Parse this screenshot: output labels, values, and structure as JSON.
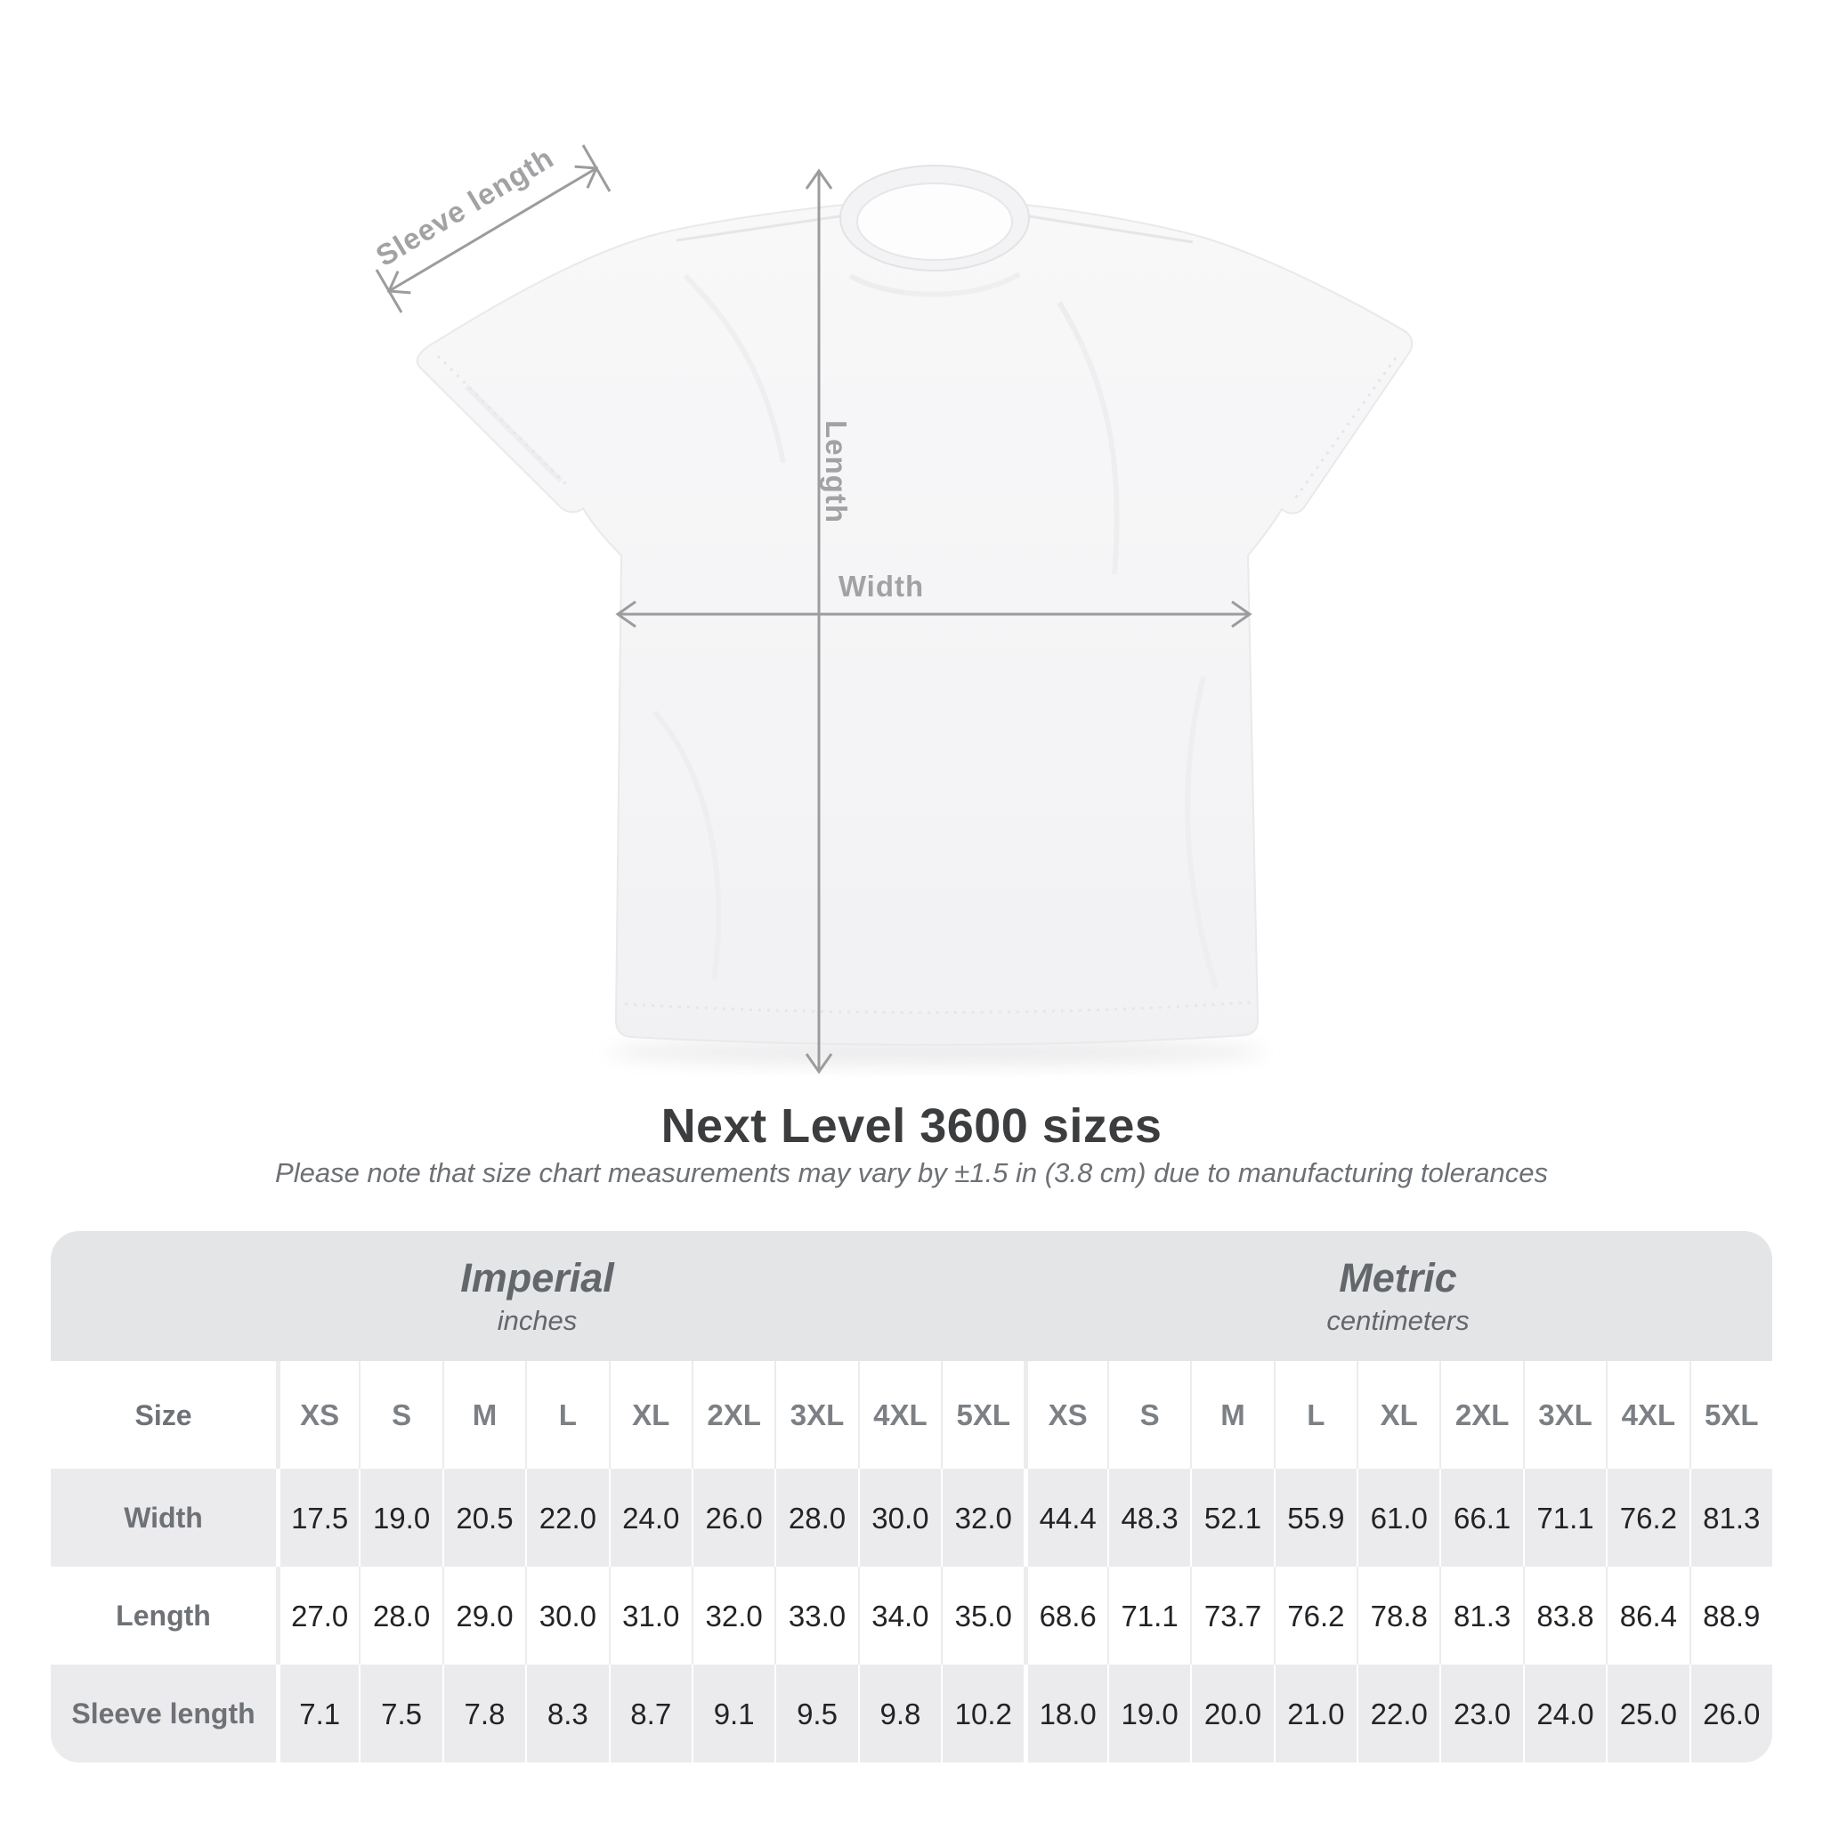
{
  "title": "Next Level 3600 sizes",
  "subtitle": "Please note that size chart measurements may vary by ±1.5 in (3.8 cm) due to manufacturing tolerances",
  "diagram": {
    "sleeve_length_label": "Sleeve length",
    "length_label": "Length",
    "width_label": "Width"
  },
  "chart_data": {
    "type": "table",
    "title": "Next Level 3600 sizes",
    "unit_groups": [
      {
        "label": "Imperial",
        "unit": "inches"
      },
      {
        "label": "Metric",
        "unit": "centimeters"
      }
    ],
    "size_header_label": "Size",
    "sizes": [
      "XS",
      "S",
      "M",
      "L",
      "XL",
      "2XL",
      "3XL",
      "4XL",
      "5XL"
    ],
    "rows": [
      {
        "label": "Width",
        "imperial": [
          17.5,
          19.0,
          20.5,
          22.0,
          24.0,
          26.0,
          28.0,
          30.0,
          32.0
        ],
        "metric": [
          44.4,
          48.3,
          52.1,
          55.9,
          61.0,
          66.1,
          71.1,
          76.2,
          81.3
        ]
      },
      {
        "label": "Length",
        "imperial": [
          27.0,
          28.0,
          29.0,
          30.0,
          31.0,
          32.0,
          33.0,
          34.0,
          35.0
        ],
        "metric": [
          68.6,
          71.1,
          73.7,
          76.2,
          78.8,
          81.3,
          83.8,
          86.4,
          88.9
        ]
      },
      {
        "label": "Sleeve length",
        "imperial": [
          7.1,
          7.5,
          7.8,
          8.3,
          8.7,
          9.1,
          9.5,
          9.8,
          10.2
        ],
        "metric": [
          18.0,
          19.0,
          20.0,
          21.0,
          22.0,
          23.0,
          24.0,
          25.0,
          26.0
        ]
      }
    ],
    "value_format": "one_decimal"
  },
  "colors": {
    "measure_line": "#9c9c9e",
    "measure_label_text": "#a2a2a4",
    "title_text": "#3c3d3f",
    "subtitle_text": "#6d7074",
    "unit_band_bg": "#e4e5e7",
    "row_stripe_bg": "#ebebed",
    "header_text": "#7c8084",
    "row_label_text": "#6e7175",
    "value_text": "#222326",
    "shirt_fill": "#f5f5f7"
  }
}
